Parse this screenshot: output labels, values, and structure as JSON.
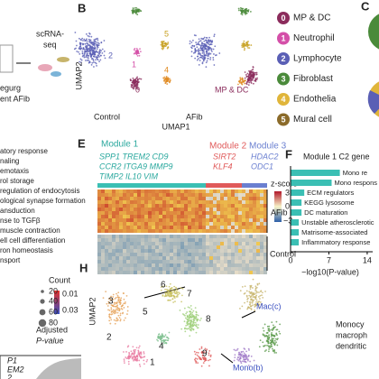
{
  "panel_a": {
    "texts": [
      "scRNA-",
      "seq",
      "egurg",
      "ent AFib"
    ]
  },
  "panel_b": {
    "label": "B",
    "clusters": [
      "3",
      "5",
      "2",
      "1",
      "4",
      "0"
    ],
    "y_axis": "UMAP2",
    "x_axis": "UMAP1",
    "conditions": [
      "Control",
      "AFib"
    ],
    "annotation": "MP & DC"
  },
  "panel_c": {
    "label": "C",
    "legend": [
      {
        "number": "0",
        "name": "MP & DC"
      },
      {
        "number": "1",
        "name": "Neutrophil"
      },
      {
        "number": "2",
        "name": "Lymphocyte"
      },
      {
        "number": "3",
        "name": "Fibroblast"
      },
      {
        "number": "4",
        "name": "Endothelia"
      },
      {
        "number": "5",
        "name": "Mural cell"
      }
    ]
  },
  "panel_d": {
    "terms": [
      "atory response",
      "naling",
      "emotaxis",
      "rol storage",
      "regulation of endocytosis",
      "ological synapse formation",
      "ansduction",
      "nse to TGFβ",
      "muscle contraction",
      "ell cell differentiation",
      "ron homeostasis",
      "nsport"
    ],
    "size_title": "Count",
    "size_ticks": [
      "20",
      "40",
      "60",
      "80"
    ],
    "color_title": [
      "Adjusted",
      "P-value"
    ],
    "color_ticks": [
      "0.01",
      "0.03"
    ],
    "fragments": [
      "P1",
      "EM2",
      "2"
    ]
  },
  "panel_e": {
    "label": "E",
    "modules": [
      "Module 1",
      "Module 2",
      "Module 3"
    ],
    "module_1_genes": [
      "SPP1 TREM2 CD9",
      "CCR2 ITGA9 MMP9",
      "TIMP2 IL10 VIM"
    ],
    "module_2_genes": [
      "SIRT2",
      "KLF4"
    ],
    "module_3_genes": [
      "HDAC2",
      "ODC1"
    ],
    "scale_title": "z-score",
    "scale_ticks": [
      "3",
      "0",
      "−3"
    ],
    "groups": [
      "AFib",
      "Control"
    ]
  },
  "panel_f": {
    "label": "F",
    "title": "Module 1 C2 gene",
    "terms": [
      "Mono re",
      "Mono respons",
      "ECM regulators",
      "KEGG lysosome",
      "DC maturation",
      "Unstable atherosclerotic",
      "Matrisome-associated",
      "Inflammatory response"
    ],
    "values": [
      9,
      7.5,
      2.5,
      2,
      2,
      1.5,
      1.5,
      1.5
    ],
    "xlim": [
      0,
      15
    ],
    "xticks": [
      0,
      7,
      14
    ],
    "x_label": "−log10(P-value)",
    "color": "#3bbfb4"
  },
  "panel_h": {
    "label": "H",
    "y_axis": "UMAP2",
    "clusters": [
      "6",
      "7",
      "3",
      "5",
      "8",
      "2",
      "4",
      "1",
      "9"
    ],
    "annotations": [
      "Mac(c)",
      "Mono(b)"
    ],
    "legend_fragments": [
      "Monocy",
      "macroph",
      "dendritic"
    ]
  }
}
